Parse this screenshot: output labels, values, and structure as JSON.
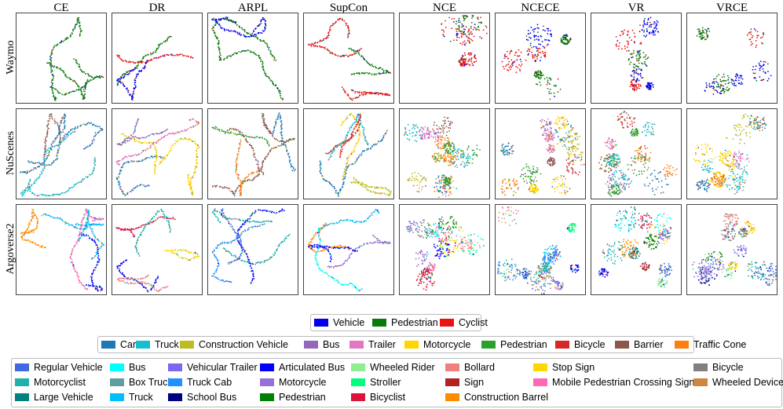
{
  "chart_data": {
    "type": "scatter",
    "columns": [
      "CE",
      "DR",
      "ARPL",
      "SupCon",
      "NCE",
      "NCECE",
      "VR",
      "VRCE"
    ],
    "rows": [
      "Waymo",
      "NuScenes",
      "Argoverse2"
    ],
    "legends": {
      "Waymo": [
        {
          "name": "Vehicle",
          "color": "#0000ee"
        },
        {
          "name": "Pedestrian",
          "color": "#0a7a0a"
        },
        {
          "name": "Cyclist",
          "color": "#e81414"
        }
      ],
      "NuScenes": [
        {
          "name": "Car",
          "color": "#1f77b4"
        },
        {
          "name": "Truck",
          "color": "#17becf"
        },
        {
          "name": "Construction Vehicle",
          "color": "#bcbd22"
        },
        {
          "name": "Bus",
          "color": "#9467bd"
        },
        {
          "name": "Trailer",
          "color": "#e377c2"
        },
        {
          "name": "Motorcycle",
          "color": "#ffd700"
        },
        {
          "name": "Pedestrian",
          "color": "#2ca02c"
        },
        {
          "name": "Bicycle",
          "color": "#d62728"
        },
        {
          "name": "Barrier",
          "color": "#8c564b"
        },
        {
          "name": "Traffic Cone",
          "color": "#ff7f0e"
        }
      ],
      "Argoverse2": [
        {
          "name": "Regular Vehicle",
          "color": "#4169e1"
        },
        {
          "name": "Motorcyclist",
          "color": "#20b2aa"
        },
        {
          "name": "Large Vehicle",
          "color": "#008080"
        },
        {
          "name": "Bus",
          "color": "#00ffff"
        },
        {
          "name": "Box Truck",
          "color": "#5f9ea0"
        },
        {
          "name": "Truck",
          "color": "#00bfff"
        },
        {
          "name": "Vehicular Trailer",
          "color": "#7b68ee"
        },
        {
          "name": "Truck Cab",
          "color": "#1e90ff"
        },
        {
          "name": "School Bus",
          "color": "#000080"
        },
        {
          "name": "Articulated Bus",
          "color": "#0000ff"
        },
        {
          "name": "Motorcycle",
          "color": "#9370db"
        },
        {
          "name": "Pedestrian",
          "color": "#008000"
        },
        {
          "name": "Wheeled Rider",
          "color": "#90ee90"
        },
        {
          "name": "Stroller",
          "color": "#00ff7f"
        },
        {
          "name": "Bicyclist",
          "color": "#dc143c"
        },
        {
          "name": "Bollard",
          "color": "#f08080"
        },
        {
          "name": "Sign",
          "color": "#b22222"
        },
        {
          "name": "Construction Barrel",
          "color": "#ff8c00"
        },
        {
          "name": "Stop Sign",
          "color": "#ffd700"
        },
        {
          "name": "Mobile Pedestrian Crossing Sign",
          "color": "#ff69b4"
        },
        {
          "name": "Bicycle",
          "color": "#808080"
        },
        {
          "name": "Wheeled Device",
          "color": "#cd853f"
        }
      ]
    }
  }
}
